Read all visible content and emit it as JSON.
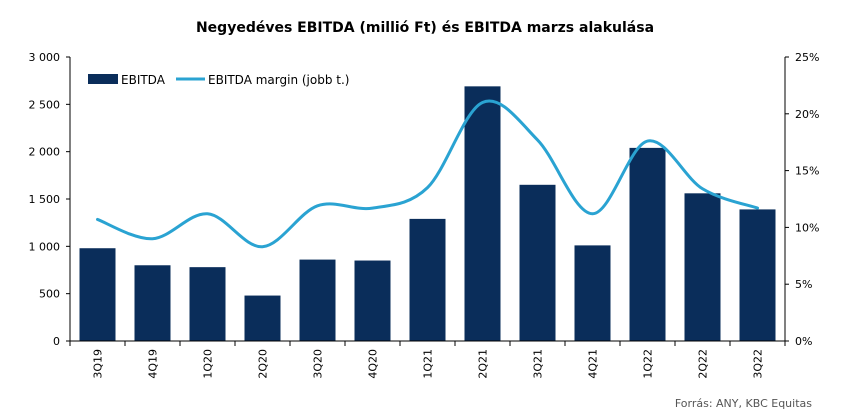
{
  "chart_data": {
    "type": "bar",
    "title": "Negyedéves EBITDA (millió Ft) és EBITDA marzs alakulása",
    "categories": [
      "3Q19",
      "4Q19",
      "1Q20",
      "2Q20",
      "3Q20",
      "4Q20",
      "1Q21",
      "2Q21",
      "3Q21",
      "4Q21",
      "1Q22",
      "2Q22",
      "3Q22"
    ],
    "series": [
      {
        "name": "EBITDA",
        "type": "bar",
        "axis": "left",
        "color": "#0a2d5a",
        "values": [
          980,
          800,
          780,
          480,
          860,
          850,
          1290,
          2690,
          1650,
          1010,
          2040,
          1560,
          1390
        ]
      },
      {
        "name": "EBITDA margin (jobb t.)",
        "type": "line",
        "axis": "right",
        "color": "#2aa3d2",
        "values": [
          10.7,
          9.0,
          11.2,
          8.3,
          11.9,
          11.7,
          13.5,
          21.0,
          17.7,
          11.2,
          17.6,
          13.4,
          11.7
        ]
      }
    ],
    "y_left": {
      "min": 0,
      "max": 3000,
      "ticks": [
        0,
        500,
        1000,
        1500,
        2000,
        2500,
        3000
      ],
      "tick_labels": [
        "0",
        "500",
        "1 000",
        "1 500",
        "2 000",
        "2 500",
        "3 000"
      ]
    },
    "y_right": {
      "min": 0,
      "max": 25,
      "ticks": [
        0,
        5,
        10,
        15,
        20,
        25
      ],
      "tick_labels": [
        "0%",
        "5%",
        "10%",
        "15%",
        "20%",
        "25%"
      ]
    },
    "legend": {
      "placement": "top-left"
    },
    "grid": false,
    "source": "Forrás: ANY, KBC Equitas"
  }
}
